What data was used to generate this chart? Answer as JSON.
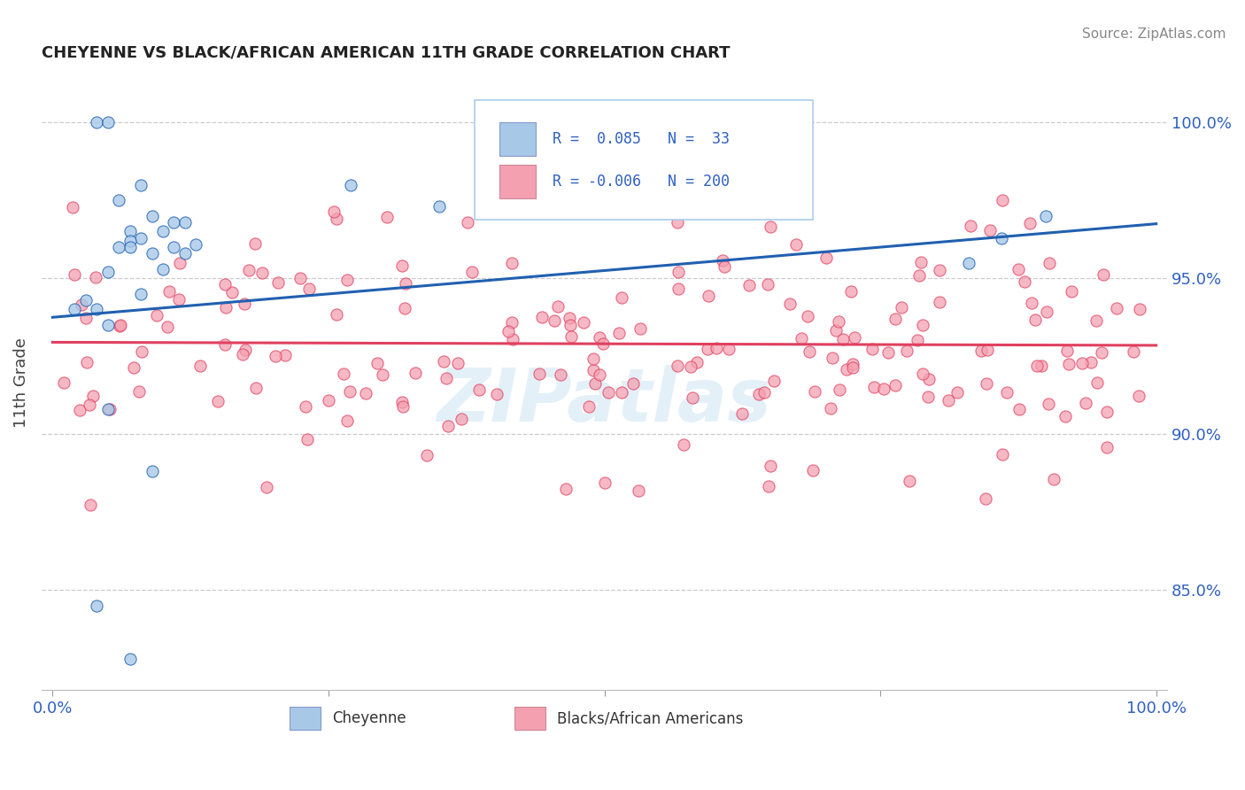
{
  "title": "CHEYENNE VS BLACK/AFRICAN AMERICAN 11TH GRADE CORRELATION CHART",
  "source": "Source: ZipAtlas.com",
  "ylabel": "11th Grade",
  "y_tick_labels": [
    "85.0%",
    "90.0%",
    "95.0%",
    "100.0%"
  ],
  "y_tick_values": [
    0.85,
    0.9,
    0.95,
    1.0
  ],
  "xlim": [
    -0.01,
    1.01
  ],
  "ylim": [
    0.818,
    1.015
  ],
  "color_blue": "#a8c8e8",
  "color_pink": "#f4a0b0",
  "line_blue": "#2060b0",
  "line_pink": "#e04060",
  "title_color": "#222222",
  "source_color": "#888888",
  "tick_color": "#3060c0",
  "blue_trend_x": [
    0.0,
    1.0
  ],
  "blue_trend_y": [
    0.9375,
    0.9675
  ],
  "pink_trend_x": [
    0.0,
    1.0
  ],
  "pink_trend_y": [
    0.9295,
    0.9285
  ],
  "watermark": "ZIPatlas",
  "legend_r1_label": "R =  0.085",
  "legend_n1_label": "N =  33",
  "legend_r2_label": "R = -0.006",
  "legend_n2_label": "N = 200",
  "bottom_label1": "Cheyenne",
  "bottom_label2": "Blacks/African Americans"
}
